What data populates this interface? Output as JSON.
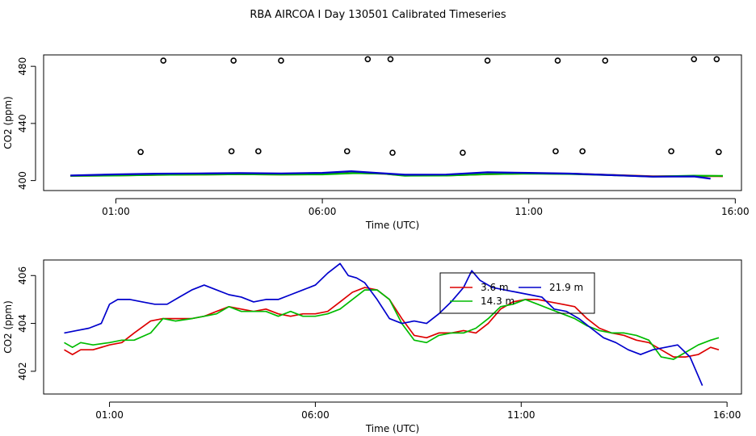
{
  "page": {
    "title": "RBA AIRCOA I  Day 130501  Calibrated Timeseries"
  },
  "chart_data": [
    {
      "type": "line",
      "panel": "overview",
      "title": "RBA AIRCOA I  Day 130501  Calibrated Timeseries",
      "xlabel": "Time (UTC)",
      "ylabel": "CO2 (ppm)",
      "xlim": [
        -0.75,
        16.15
      ],
      "ylim": [
        393,
        488
      ],
      "xticks": [
        1,
        6,
        11,
        16
      ],
      "xtick_labels": [
        "01:00",
        "06:00",
        "11:00",
        "16:00"
      ],
      "yticks": [
        400,
        440,
        480
      ],
      "ytick_labels": [
        "400",
        "440",
        "480"
      ],
      "calibration_points": [
        {
          "x": 1.6,
          "y": 420
        },
        {
          "x": 2.15,
          "y": 484
        },
        {
          "x": 3.8,
          "y": 420.5
        },
        {
          "x": 3.85,
          "y": 484
        },
        {
          "x": 4.45,
          "y": 420.5
        },
        {
          "x": 5.0,
          "y": 484
        },
        {
          "x": 6.6,
          "y": 420.5
        },
        {
          "x": 7.1,
          "y": 485
        },
        {
          "x": 7.65,
          "y": 485
        },
        {
          "x": 7.7,
          "y": 419.5
        },
        {
          "x": 9.4,
          "y": 419.5
        },
        {
          "x": 10.0,
          "y": 484
        },
        {
          "x": 11.65,
          "y": 420.5
        },
        {
          "x": 11.7,
          "y": 484
        },
        {
          "x": 12.3,
          "y": 420.5
        },
        {
          "x": 12.85,
          "y": 484
        },
        {
          "x": 14.45,
          "y": 420.5
        },
        {
          "x": 15.0,
          "y": 485
        },
        {
          "x": 15.55,
          "y": 485
        },
        {
          "x": 15.6,
          "y": 420
        }
      ],
      "series": [
        {
          "name": "3.6 m",
          "color": "#dd0000",
          "values": [
            [
              -0.1,
              403.3
            ],
            [
              1,
              403.6
            ],
            [
              2,
              404.0
            ],
            [
              3,
              404.2
            ],
            [
              4,
              404.4
            ],
            [
              5,
              404.2
            ],
            [
              6,
              404.5
            ],
            [
              6.8,
              405.3
            ],
            [
              7.5,
              404.8
            ],
            [
              8,
              403.6
            ],
            [
              9,
              403.6
            ],
            [
              10,
              404.4
            ],
            [
              11,
              405.0
            ],
            [
              12,
              404.8
            ],
            [
              13,
              403.9
            ],
            [
              14,
              403.0
            ],
            [
              15,
              403.1
            ],
            [
              15.5,
              403.2
            ],
            [
              15.7,
              403.0
            ]
          ]
        },
        {
          "name": "14.3 m",
          "color": "#00bb00",
          "values": [
            [
              -0.1,
              403.3
            ],
            [
              1,
              403.5
            ],
            [
              2,
              404.0
            ],
            [
              3,
              404.2
            ],
            [
              4,
              404.4
            ],
            [
              5,
              404.2
            ],
            [
              6,
              404.3
            ],
            [
              6.8,
              405.2
            ],
            [
              7.5,
              404.8
            ],
            [
              8,
              403.4
            ],
            [
              9,
              403.5
            ],
            [
              10,
              404.5
            ],
            [
              11,
              404.9
            ],
            [
              12,
              404.6
            ],
            [
              13,
              403.8
            ],
            [
              14,
              402.8
            ],
            [
              15,
              403.4
            ],
            [
              15.5,
              403.3
            ],
            [
              15.7,
              403.3
            ]
          ]
        },
        {
          "name": "21.9 m",
          "color": "#0000cc",
          "values": [
            [
              -0.1,
              403.6
            ],
            [
              1,
              404.3
            ],
            [
              2,
              404.8
            ],
            [
              3,
              405.0
            ],
            [
              4,
              405.2
            ],
            [
              5,
              405.0
            ],
            [
              6,
              405.4
            ],
            [
              6.7,
              406.5
            ],
            [
              7.3,
              405.4
            ],
            [
              8,
              404.1
            ],
            [
              9,
              404.2
            ],
            [
              10,
              405.8
            ],
            [
              11,
              405.4
            ],
            [
              12,
              404.9
            ],
            [
              13,
              403.8
            ],
            [
              14,
              402.7
            ],
            [
              15,
              402.9
            ],
            [
              15.4,
              401.3
            ]
          ]
        }
      ]
    },
    {
      "type": "line",
      "panel": "zoomed",
      "title": "",
      "xlabel": "Time (UTC)",
      "ylabel": "CO2 (ppm)",
      "xlim": [
        -0.6,
        16.35
      ],
      "ylim": [
        401.05,
        406.65
      ],
      "xticks": [
        1,
        6,
        11,
        16
      ],
      "xtick_labels": [
        "01:00",
        "06:00",
        "11:00",
        "16:00"
      ],
      "yticks": [
        402,
        404,
        406
      ],
      "ytick_labels": [
        "402",
        "404",
        "406"
      ],
      "legend": {
        "position": "top-center",
        "entries": [
          "3.6 m",
          "21.9 m",
          "14.3 m"
        ]
      },
      "series": [
        {
          "name": "3.6 m",
          "color": "#dd0000",
          "x": [
            -0.1,
            0.1,
            0.3,
            0.6,
            1.0,
            1.3,
            1.6,
            2.0,
            2.3,
            2.6,
            3.0,
            3.3,
            3.6,
            3.9,
            4.2,
            4.5,
            4.8,
            5.1,
            5.4,
            5.7,
            6.0,
            6.3,
            6.6,
            6.9,
            7.2,
            7.5,
            7.8,
            8.1,
            8.4,
            8.7,
            9.0,
            9.3,
            9.6,
            9.9,
            10.2,
            10.5,
            10.8,
            11.1,
            11.4,
            11.7,
            12.0,
            12.3,
            12.6,
            12.9,
            13.2,
            13.5,
            13.8,
            14.1,
            14.4,
            14.7,
            15.0,
            15.3,
            15.6,
            15.8
          ],
          "values": [
            402.9,
            402.7,
            402.9,
            402.9,
            403.1,
            403.2,
            403.6,
            404.1,
            404.2,
            404.2,
            404.2,
            404.3,
            404.5,
            404.7,
            404.6,
            404.5,
            404.6,
            404.4,
            404.3,
            404.4,
            404.4,
            404.5,
            404.9,
            405.3,
            405.5,
            405.4,
            405.0,
            404.2,
            403.5,
            403.4,
            403.6,
            403.6,
            403.7,
            403.6,
            404.0,
            404.6,
            404.9,
            405.0,
            405.0,
            404.9,
            404.8,
            404.7,
            404.2,
            403.8,
            403.6,
            403.5,
            403.3,
            403.2,
            402.9,
            402.6,
            402.6,
            402.7,
            403.0,
            402.9
          ]
        },
        {
          "name": "14.3 m",
          "color": "#00bb00",
          "x": [
            -0.1,
            0.1,
            0.3,
            0.6,
            1.0,
            1.3,
            1.6,
            2.0,
            2.3,
            2.6,
            3.0,
            3.3,
            3.6,
            3.9,
            4.2,
            4.5,
            4.8,
            5.1,
            5.4,
            5.7,
            6.0,
            6.3,
            6.6,
            6.9,
            7.2,
            7.5,
            7.8,
            8.1,
            8.4,
            8.7,
            9.0,
            9.3,
            9.6,
            9.9,
            10.2,
            10.5,
            10.8,
            11.1,
            11.4,
            11.7,
            12.0,
            12.3,
            12.6,
            12.9,
            13.2,
            13.5,
            13.8,
            14.1,
            14.4,
            14.7,
            15.0,
            15.3,
            15.6,
            15.8
          ],
          "values": [
            403.2,
            403.0,
            403.2,
            403.1,
            403.2,
            403.3,
            403.3,
            403.6,
            404.2,
            404.1,
            404.2,
            404.3,
            404.4,
            404.7,
            404.5,
            404.5,
            404.5,
            404.3,
            404.5,
            404.3,
            404.3,
            404.4,
            404.6,
            405.0,
            405.4,
            405.4,
            405.0,
            404.0,
            403.3,
            403.2,
            403.5,
            403.6,
            403.6,
            403.8,
            404.2,
            404.7,
            404.8,
            405.0,
            404.8,
            404.6,
            404.4,
            404.2,
            403.9,
            403.7,
            403.6,
            403.6,
            403.5,
            403.3,
            402.6,
            402.5,
            402.8,
            403.1,
            403.3,
            403.4
          ]
        },
        {
          "name": "21.9 m",
          "color": "#0000cc",
          "x": [
            -0.1,
            0.2,
            0.5,
            0.8,
            1.0,
            1.2,
            1.5,
            1.8,
            2.1,
            2.4,
            2.7,
            3.0,
            3.3,
            3.6,
            3.9,
            4.2,
            4.5,
            4.8,
            5.1,
            5.4,
            5.7,
            6.0,
            6.3,
            6.6,
            6.8,
            7.0,
            7.2,
            7.5,
            7.8,
            8.1,
            8.4,
            8.7,
            9.0,
            9.3,
            9.6,
            9.8,
            10.0,
            10.3,
            10.6,
            10.9,
            11.2,
            11.5,
            11.8,
            12.1,
            12.4,
            12.7,
            13.0,
            13.3,
            13.6,
            13.9,
            14.2,
            14.5,
            14.8,
            15.1,
            15.4
          ],
          "values": [
            403.6,
            403.7,
            403.8,
            404.0,
            404.8,
            405.0,
            405.0,
            404.9,
            404.8,
            404.8,
            405.1,
            405.4,
            405.6,
            405.4,
            405.2,
            405.1,
            404.9,
            405.0,
            405.0,
            405.2,
            405.4,
            405.6,
            406.1,
            406.5,
            406.0,
            405.9,
            405.7,
            405.0,
            404.2,
            404.0,
            404.1,
            404.0,
            404.4,
            404.9,
            405.5,
            406.2,
            405.8,
            405.5,
            405.4,
            405.3,
            405.2,
            405.1,
            404.6,
            404.5,
            404.2,
            403.8,
            403.4,
            403.2,
            402.9,
            402.7,
            402.9,
            403.0,
            403.1,
            402.6,
            401.4
          ]
        }
      ]
    }
  ]
}
